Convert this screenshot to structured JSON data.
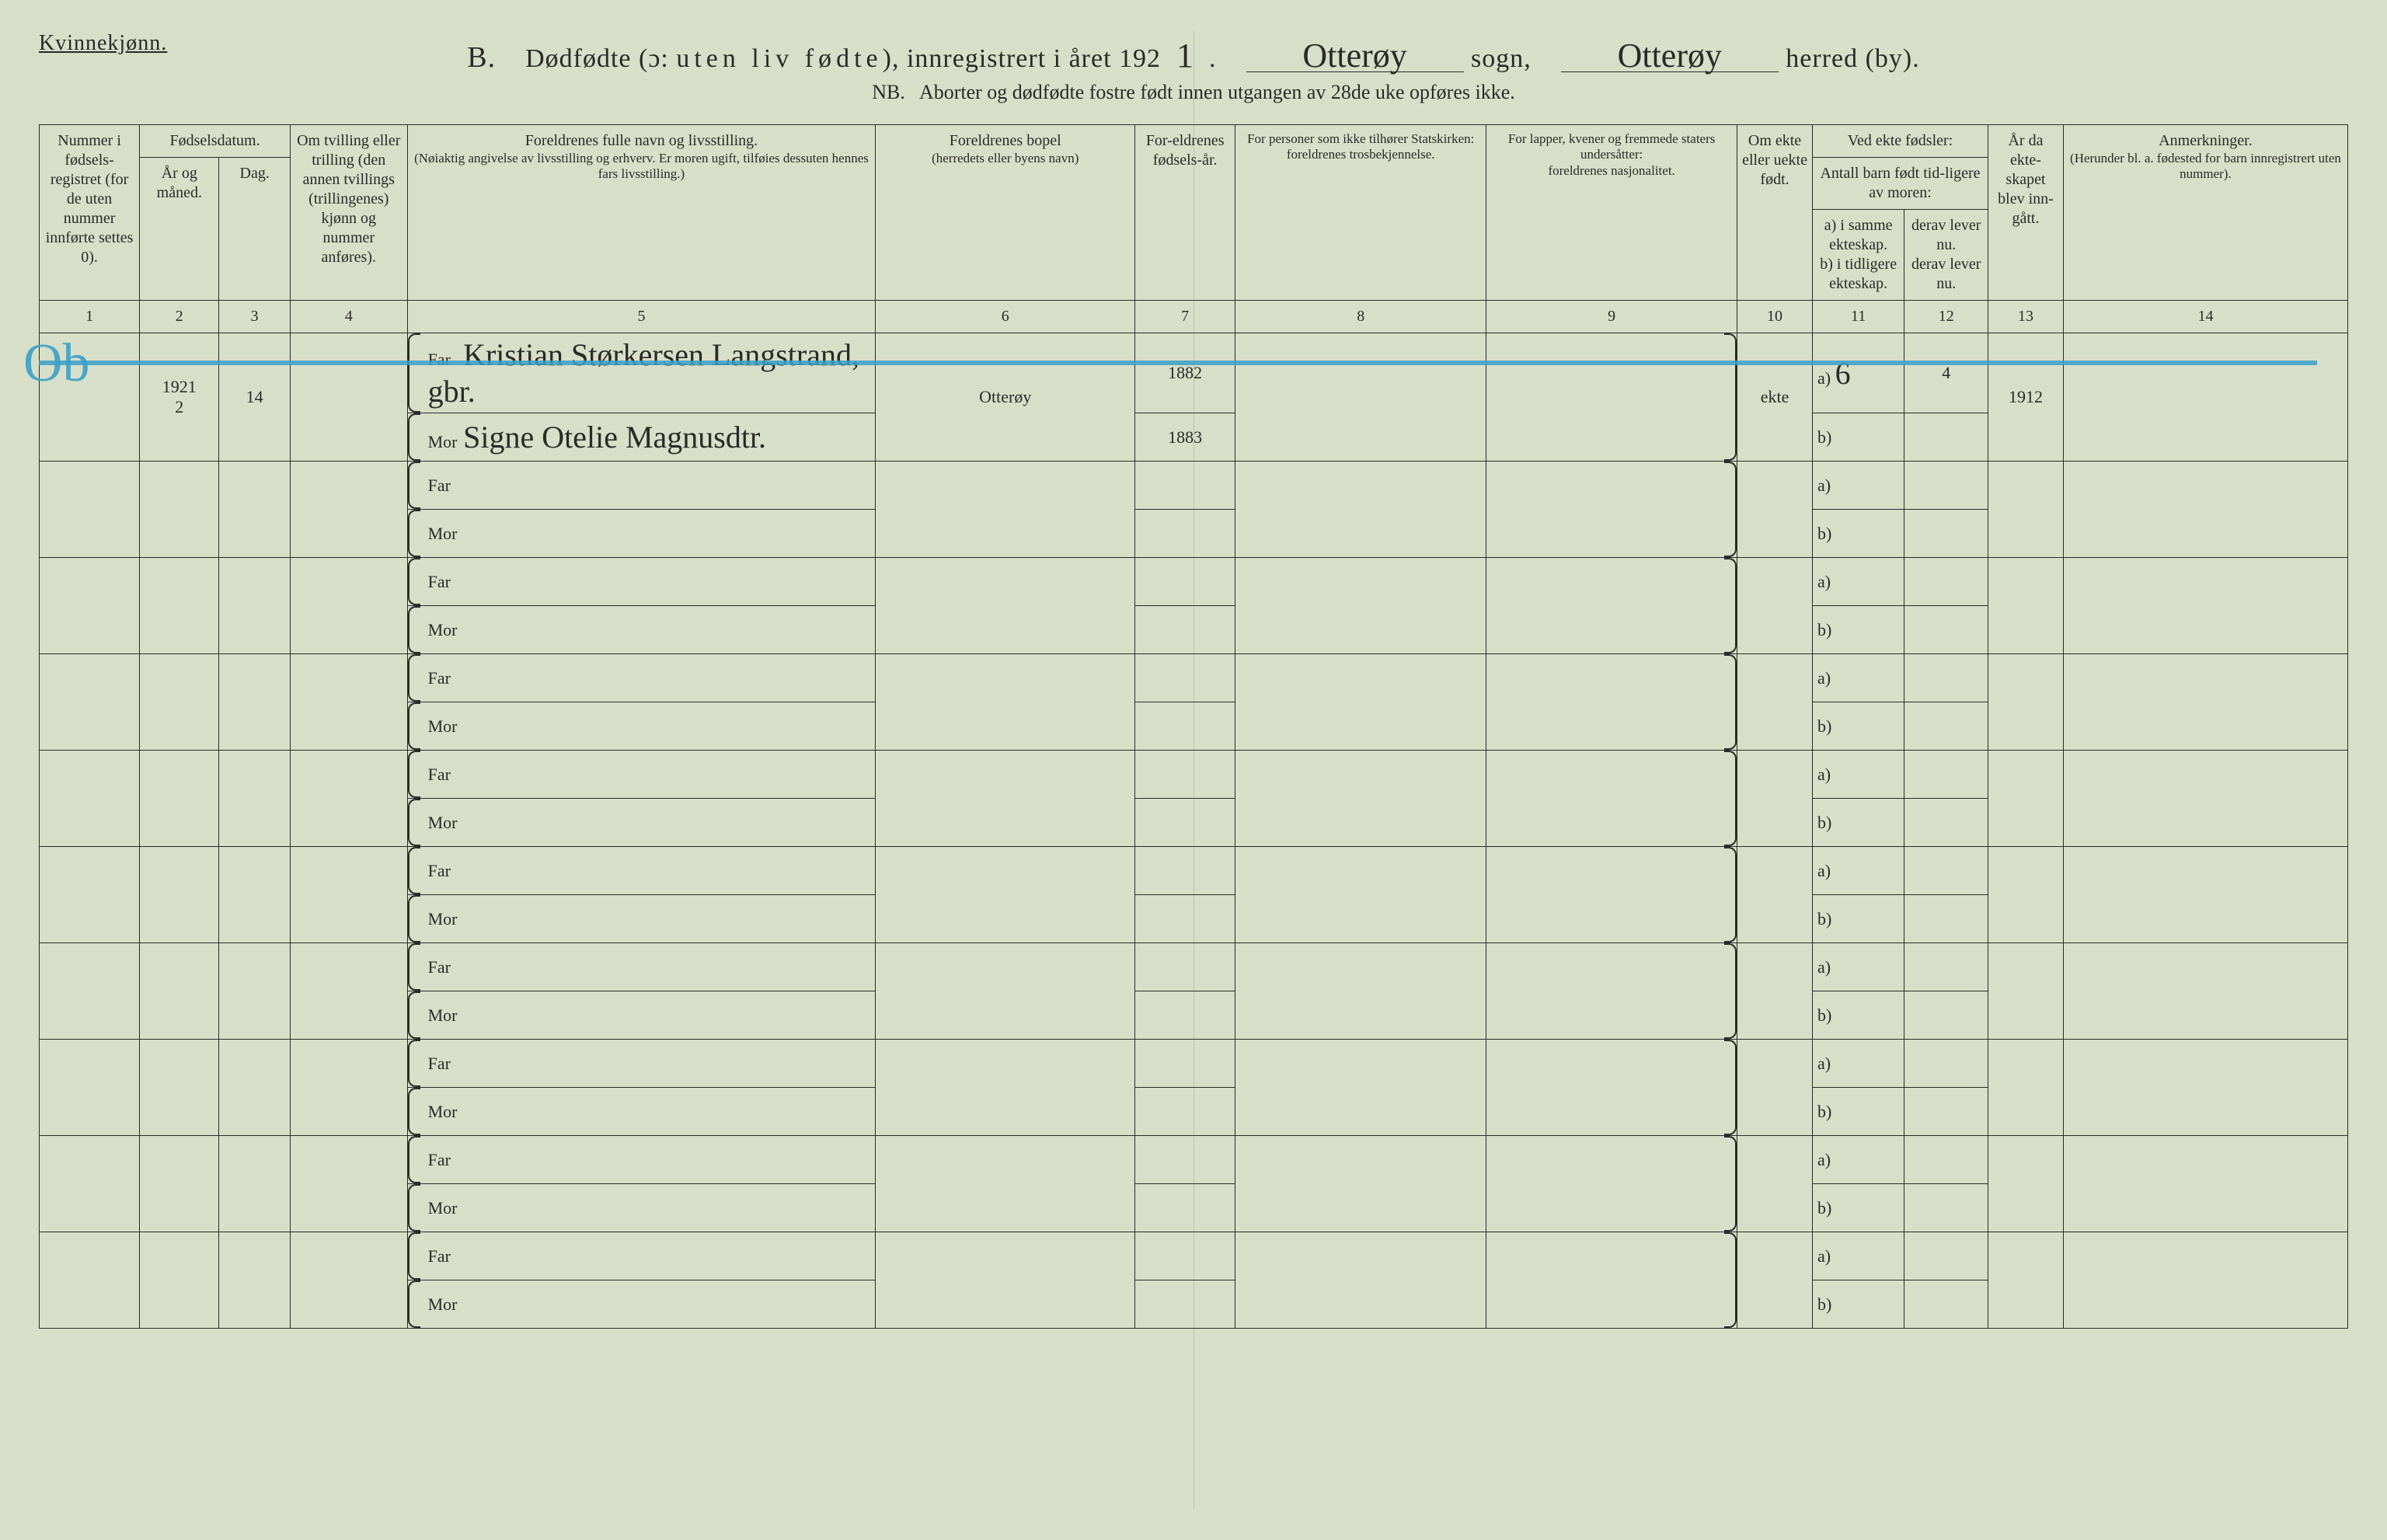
{
  "header": {
    "gender": "Kvinnekjønn.",
    "section_letter": "B.",
    "title_main_1": "Dødfødte (ɔ:",
    "title_main_2": "uten liv fødte",
    "title_main_3": "), innregistrert i året 192",
    "year_suffix": "1",
    "sogn_word": "sogn,",
    "herred_word": "herred (by).",
    "sogn_value": "Otterøy",
    "herred_value": "Otterøy",
    "sub_prefix": "NB.",
    "sub_text": "Aborter og dødfødte fostre født innen utgangen av 28de uke opføres ikke."
  },
  "columns": {
    "c1": "Nummer i fødsels-registret (for de uten nummer innførte settes 0).",
    "c2_top": "Fødselsdatum.",
    "c2a": "År og måned.",
    "c2b": "Dag.",
    "c3": "Om tvilling eller trilling (den annen tvillings (trillingenes) kjønn og nummer anføres).",
    "c4_title": "Foreldrenes fulle navn og livsstilling.",
    "c4_sub": "(Nøiaktig angivelse av livsstilling og erhverv. Er moren ugift, tilføies dessuten hennes fars livsstilling.)",
    "c5_title": "Foreldrenes bopel",
    "c5_sub": "(herredets eller byens navn)",
    "c6": "For-eldrenes fødsels-år.",
    "c7_title": "For personer som ikke tilhører Statskirken:",
    "c7_sub": "foreldrenes trosbekjennelse.",
    "c8_title": "For lapper, kvener og fremmede staters undersåtter:",
    "c8_sub": "foreldrenes nasjonalitet.",
    "c9": "Om ekte eller uekte født.",
    "c10_top": "Ved ekte fødsler:",
    "c10_mid": "Antall barn født tid-ligere av moren:",
    "c10a": "a) i samme ekteskap.",
    "c10b": "b) i tidligere ekteskap.",
    "c10c1": "derav lever nu.",
    "c10c2": "derav lever nu.",
    "c11": "År da ekte-skapet blev inn-gått.",
    "c12_title": "Anmerkninger.",
    "c12_sub": "(Herunder bl. a. fødested for barn innregistrert uten nummer).",
    "nums": [
      "1",
      "2",
      "3",
      "4",
      "5",
      "6",
      "7",
      "8",
      "9",
      "10",
      "11",
      "12",
      "13",
      "14"
    ]
  },
  "labels": {
    "far": "Far",
    "mor": "Mor",
    "a": "a)",
    "b": "b)"
  },
  "entry": {
    "year": "1921",
    "month": "2",
    "day": "14",
    "far_name": "Kristian Størkersen Langstrand, gbr.",
    "mor_name": "Signe Otelie Magnusdtr.",
    "bopel": "Otterøy",
    "far_aar": "1882",
    "mor_aar": "1883",
    "ekte": "ekte",
    "sam_a": "6",
    "derav_a": "4",
    "ekte_aar": "1912"
  },
  "margin_mark": "Ob",
  "style": {
    "bg": "#d8dfc8",
    "line": "#2a2a2a",
    "blue": "#3aa0c8"
  }
}
